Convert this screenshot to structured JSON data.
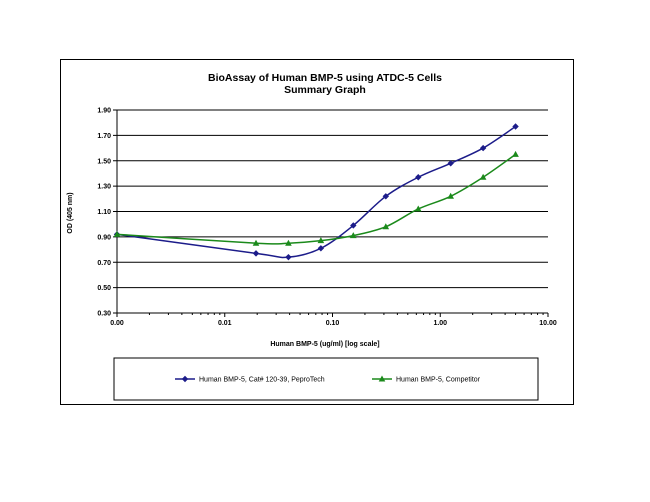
{
  "chart_data": {
    "type": "line",
    "title": "BioAssay of Human BMP-5 using ATDC-5 Cells",
    "subtitle": "Summary Graph",
    "xlabel": "Human BMP-5 (ug/ml) [log scale]",
    "ylabel": "OD (405 nm)",
    "x_scale": "log",
    "xlim": [
      0.001,
      10
    ],
    "ylim": [
      0.3,
      1.9
    ],
    "x_tick_labels": [
      "0.00",
      "0.01",
      "0.10",
      "1.00",
      "10.00"
    ],
    "y_tick_labels": [
      "0.30",
      "0.50",
      "0.70",
      "0.90",
      "1.10",
      "1.30",
      "1.50",
      "1.70",
      "1.90"
    ],
    "grid": "horizontal",
    "legend_position": "bottom",
    "series": [
      {
        "name": "Human BMP-5, Cat# 120-39, PeproTech",
        "color": "#1c1c8a",
        "marker": "diamond",
        "x": [
          0.001,
          0.0195,
          0.039,
          0.078,
          0.156,
          0.3125,
          0.625,
          1.25,
          2.5,
          5
        ],
        "y": [
          0.92,
          0.77,
          0.74,
          0.81,
          0.99,
          1.22,
          1.37,
          1.48,
          1.6,
          1.77
        ]
      },
      {
        "name": "Human BMP-5, Competitor",
        "color": "#1b8a1b",
        "marker": "triangle",
        "x": [
          0.001,
          0.0195,
          0.039,
          0.078,
          0.156,
          0.3125,
          0.625,
          1.25,
          2.5,
          5
        ],
        "y": [
          0.92,
          0.85,
          0.85,
          0.87,
          0.91,
          0.98,
          1.12,
          1.22,
          1.37,
          1.55
        ]
      }
    ]
  }
}
